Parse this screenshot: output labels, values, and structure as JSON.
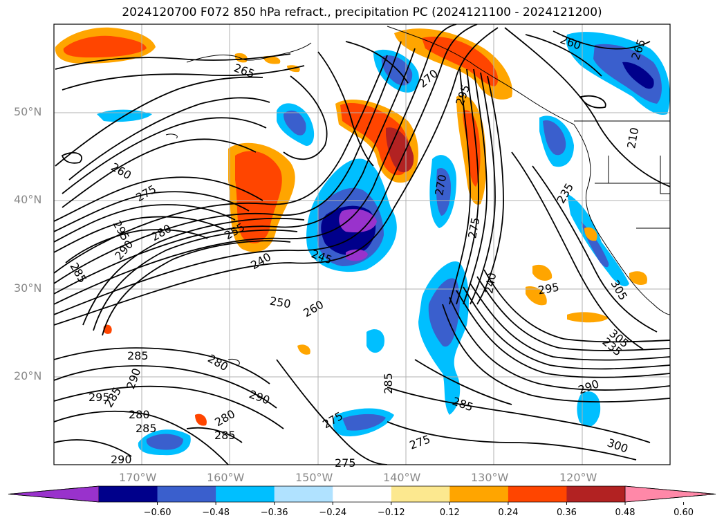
{
  "title": "2024120700 F072 850 hPa refract., precipitation PC (2024121100 - 2024121200)",
  "lat_labels": [
    "50°N",
    "40°N",
    "30°N",
    "20°N"
  ],
  "lon_labels": [
    "170°W",
    "160°W",
    "150°W",
    "140°W",
    "130°W",
    "120°W"
  ],
  "contour_labels": [
    "265",
    "260",
    "265",
    "270",
    "295",
    "260",
    "275",
    "295",
    "280",
    "285",
    "290",
    "255",
    "240",
    "245",
    "250",
    "260",
    "270",
    "275",
    "280",
    "285",
    "290",
    "295",
    "280",
    "285",
    "290",
    "285",
    "280",
    "285",
    "290",
    "275",
    "285",
    "275",
    "275",
    "285",
    "300",
    "290",
    "305",
    "295",
    "305",
    "235",
    "240",
    "235",
    "210"
  ],
  "colorbar": {
    "colors": [
      "#9932cc",
      "#00008b",
      "#3a5fcd",
      "#00bfff",
      "#b0e2ff",
      "#ffffff",
      "#fce88f",
      "#ffa500",
      "#ff4500",
      "#b22222",
      "#ff88a8"
    ],
    "tick_labels": [
      "−0.60",
      "−0.48",
      "−0.36",
      "−0.24",
      "−0.12",
      "0.12",
      "0.24",
      "0.36",
      "0.48",
      "0.60"
    ]
  }
}
